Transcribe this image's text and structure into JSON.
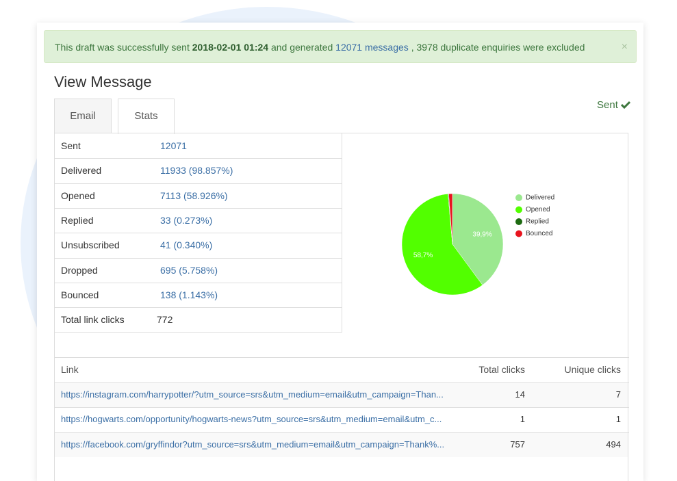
{
  "alert": {
    "text_before": "This draft was successfully sent",
    "date": "2018-02-01 01:24",
    "text_mid": "and generated",
    "link": "12071 messages",
    "text_after": ", 3978 duplicate enquiries were excluded",
    "close": "×"
  },
  "title": "View Message",
  "tabs": [
    "Email",
    "Stats"
  ],
  "status": "Sent",
  "stats": {
    "rows": [
      [
        "Sent",
        "12071"
      ],
      [
        "Delivered",
        "11933 (98.857%)"
      ],
      [
        "Opened",
        "7113 (58.926%)"
      ],
      [
        "Replied",
        "33 (0.273%)"
      ],
      [
        "Unsubscribed",
        "41 (0.340%)"
      ],
      [
        "Dropped",
        "695 (5.758%)"
      ],
      [
        "Bounced",
        "138 (1.143%)"
      ],
      [
        "Total link clicks",
        "772"
      ]
    ]
  },
  "chart": {
    "type": "pie",
    "categories": [
      "Delivered",
      "Opened",
      "Replied",
      "Bounced"
    ],
    "values": [
      39.9,
      58.7,
      0.2,
      1.2
    ],
    "value_labels": [
      "39,9%",
      "58,7%",
      null,
      null
    ],
    "colors": [
      "#9be88f",
      "#52ff00",
      "#1e6b12",
      "#e8141e"
    ]
  },
  "links": {
    "header": [
      "Link",
      "Total clicks",
      "Unique clicks"
    ],
    "rows": [
      [
        "https://instagram.com/harrypotter/?utm_source=srs&utm_medium=email&utm_campaign=Than...",
        14,
        7
      ],
      [
        "https://hogwarts.com/opportunity/hogwarts-news?utm_source=srs&utm_medium=email&utm_c...",
        1,
        1
      ],
      [
        "https://facebook.com/gryffindor?utm_source=srs&utm_medium=email&utm_campaign=Thank%...",
        757,
        494
      ]
    ]
  }
}
